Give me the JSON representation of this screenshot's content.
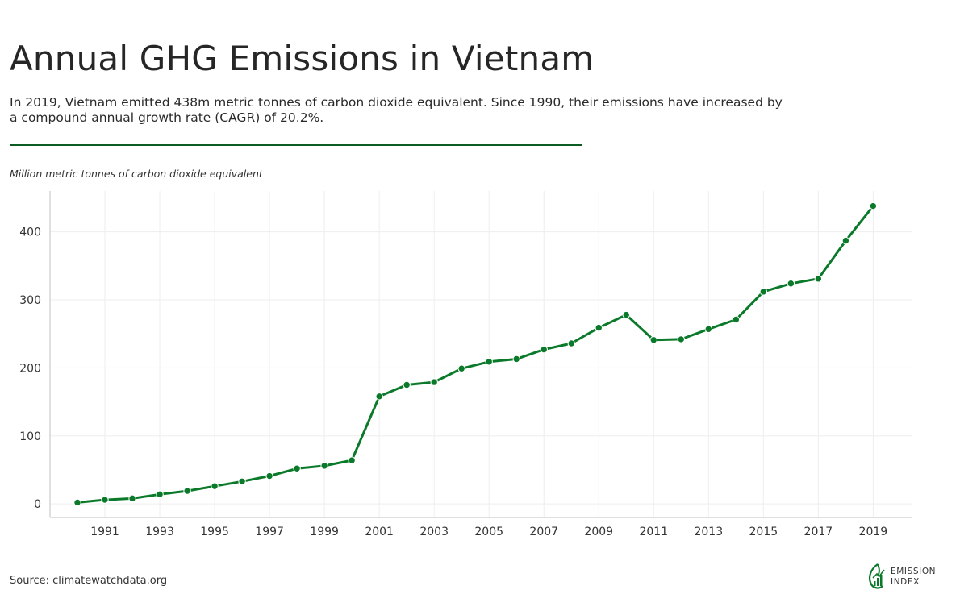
{
  "header": {
    "title": "Annual GHG Emissions in Vietnam",
    "subtitle": "In 2019, Vietnam emitted 438m metric tonnes of carbon dioxide equivalent. Since 1990, their emissions have increased by a compound annual growth rate (CAGR) of 20.2%.",
    "units": "Million metric tonnes of carbon dioxide equivalent"
  },
  "footer": {
    "source": "Source: climatewatchdata.org",
    "logo_line1": "EMISSION",
    "logo_line2": "INDEX"
  },
  "colors": {
    "line": "#0a7a2a",
    "rule": "#0b5d23",
    "grid": "#eeeeee",
    "axis": "#cccccc"
  },
  "chart_data": {
    "type": "line",
    "xlabel": "",
    "ylabel": "",
    "grid": true,
    "x": [
      1990,
      1991,
      1992,
      1993,
      1994,
      1995,
      1996,
      1997,
      1998,
      1999,
      2000,
      2001,
      2002,
      2003,
      2004,
      2005,
      2006,
      2007,
      2008,
      2009,
      2010,
      2011,
      2012,
      2013,
      2014,
      2015,
      2016,
      2017,
      2018,
      2019
    ],
    "x_ticks": [
      1991,
      1993,
      1995,
      1997,
      1999,
      2001,
      2003,
      2005,
      2007,
      2009,
      2011,
      2013,
      2015,
      2017,
      2019
    ],
    "y_ticks": [
      0,
      100,
      200,
      300,
      400
    ],
    "xlim": [
      1989,
      2020.4
    ],
    "ylim": [
      -20,
      460
    ],
    "series": [
      {
        "values": [
          2,
          6,
          8,
          14,
          19,
          26,
          33,
          41,
          52,
          56,
          64,
          158,
          175,
          179,
          199,
          209,
          213,
          227,
          236,
          259,
          278,
          241,
          242,
          257,
          271,
          312,
          324,
          331,
          387,
          438
        ]
      }
    ]
  }
}
